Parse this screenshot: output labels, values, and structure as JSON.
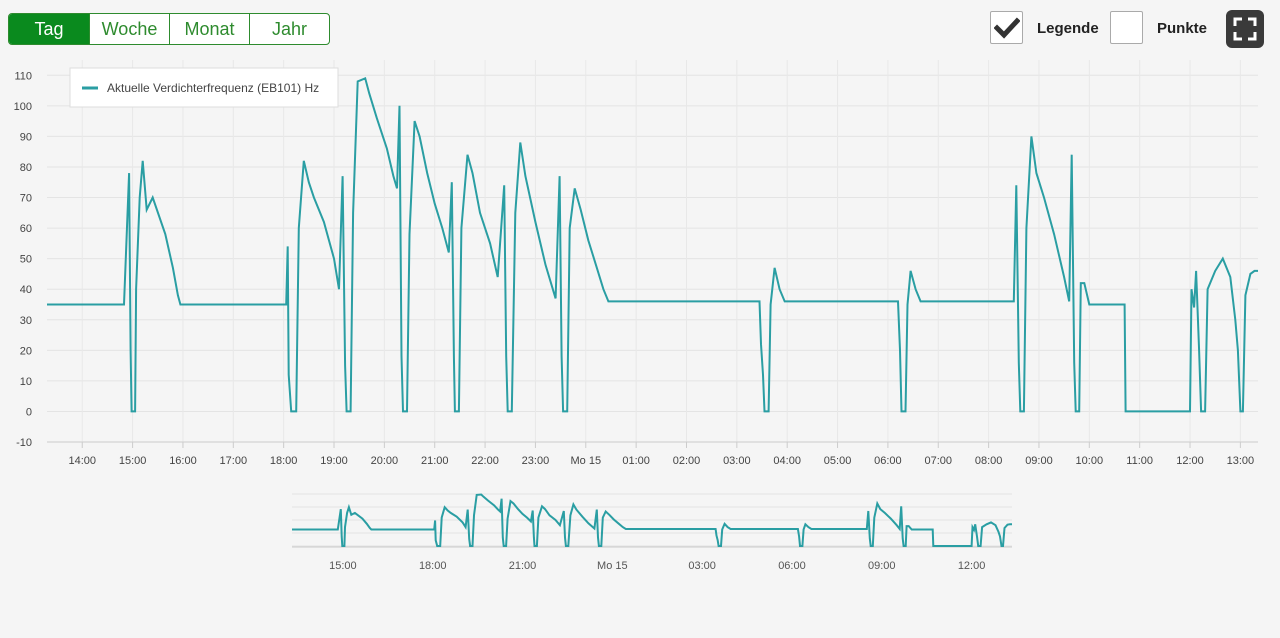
{
  "range_tabs": [
    {
      "label": "Tag",
      "active": true
    },
    {
      "label": "Woche",
      "active": false
    },
    {
      "label": "Monat",
      "active": false
    },
    {
      "label": "Jahr",
      "active": false
    }
  ],
  "toggles": {
    "legend_label": "Legende",
    "legend_checked": true,
    "points_label": "Punkte",
    "points_checked": false
  },
  "icons": {
    "fullscreen": "fullscreen-icon",
    "check": "check-icon"
  },
  "colors": {
    "accent": "#0a8a1e",
    "series": "#2a9ea3"
  },
  "chart_data": {
    "type": "line",
    "title": "",
    "xlabel": "",
    "ylabel": "",
    "ylim": [
      -10,
      115
    ],
    "yticks": [
      -10,
      0,
      10,
      20,
      30,
      40,
      50,
      60,
      70,
      80,
      90,
      100,
      110
    ],
    "xlim": [
      13.3,
      37.35
    ],
    "xticks": [
      {
        "x": 14,
        "label": "14:00"
      },
      {
        "x": 15,
        "label": "15:00"
      },
      {
        "x": 16,
        "label": "16:00"
      },
      {
        "x": 17,
        "label": "17:00"
      },
      {
        "x": 18,
        "label": "18:00"
      },
      {
        "x": 19,
        "label": "19:00"
      },
      {
        "x": 20,
        "label": "20:00"
      },
      {
        "x": 21,
        "label": "21:00"
      },
      {
        "x": 22,
        "label": "22:00"
      },
      {
        "x": 23,
        "label": "23:00"
      },
      {
        "x": 24,
        "label": "Mo 15"
      },
      {
        "x": 25,
        "label": "01:00"
      },
      {
        "x": 26,
        "label": "02:00"
      },
      {
        "x": 27,
        "label": "03:00"
      },
      {
        "x": 28,
        "label": "04:00"
      },
      {
        "x": 29,
        "label": "05:00"
      },
      {
        "x": 30,
        "label": "06:00"
      },
      {
        "x": 31,
        "label": "07:00"
      },
      {
        "x": 32,
        "label": "08:00"
      },
      {
        "x": 33,
        "label": "09:00"
      },
      {
        "x": 34,
        "label": "10:00"
      },
      {
        "x": 35,
        "label": "11:00"
      },
      {
        "x": 36,
        "label": "12:00"
      },
      {
        "x": 37,
        "label": "13:00"
      }
    ],
    "grid": true,
    "legend_position": "top-left",
    "series": [
      {
        "name": "Aktuelle Verdichterfrequenz (EB101) Hz",
        "color": "#2a9ea3",
        "points": [
          [
            13.3,
            35
          ],
          [
            14.83,
            35
          ],
          [
            14.93,
            78
          ],
          [
            14.96,
            20
          ],
          [
            14.98,
            0
          ],
          [
            15.05,
            0
          ],
          [
            15.07,
            40
          ],
          [
            15.14,
            70
          ],
          [
            15.2,
            82
          ],
          [
            15.28,
            66
          ],
          [
            15.4,
            70
          ],
          [
            15.65,
            58
          ],
          [
            15.8,
            47
          ],
          [
            15.9,
            38
          ],
          [
            15.95,
            35
          ],
          [
            18.05,
            35
          ],
          [
            18.08,
            54
          ],
          [
            18.1,
            12
          ],
          [
            18.15,
            0
          ],
          [
            18.25,
            0
          ],
          [
            18.3,
            60
          ],
          [
            18.4,
            82
          ],
          [
            18.5,
            75
          ],
          [
            18.6,
            70
          ],
          [
            18.8,
            62
          ],
          [
            19.0,
            50
          ],
          [
            19.1,
            40
          ],
          [
            19.17,
            77
          ],
          [
            19.22,
            15
          ],
          [
            19.25,
            0
          ],
          [
            19.33,
            0
          ],
          [
            19.38,
            65
          ],
          [
            19.47,
            108
          ],
          [
            19.62,
            109
          ],
          [
            19.7,
            104
          ],
          [
            19.85,
            96
          ],
          [
            20.05,
            86
          ],
          [
            20.18,
            77
          ],
          [
            20.25,
            73
          ],
          [
            20.3,
            100
          ],
          [
            20.34,
            18
          ],
          [
            20.37,
            0
          ],
          [
            20.45,
            0
          ],
          [
            20.5,
            58
          ],
          [
            20.6,
            95
          ],
          [
            20.7,
            90
          ],
          [
            20.85,
            78
          ],
          [
            21.0,
            68
          ],
          [
            21.15,
            60
          ],
          [
            21.28,
            52
          ],
          [
            21.34,
            75
          ],
          [
            21.38,
            18
          ],
          [
            21.4,
            0
          ],
          [
            21.48,
            0
          ],
          [
            21.53,
            60
          ],
          [
            21.65,
            84
          ],
          [
            21.75,
            78
          ],
          [
            21.9,
            65
          ],
          [
            22.1,
            55
          ],
          [
            22.25,
            44
          ],
          [
            22.38,
            74
          ],
          [
            22.42,
            18
          ],
          [
            22.45,
            0
          ],
          [
            22.53,
            0
          ],
          [
            22.6,
            65
          ],
          [
            22.7,
            88
          ],
          [
            22.8,
            77
          ],
          [
            23.0,
            62
          ],
          [
            23.2,
            48
          ],
          [
            23.4,
            37
          ],
          [
            23.48,
            77
          ],
          [
            23.52,
            18
          ],
          [
            23.55,
            0
          ],
          [
            23.63,
            0
          ],
          [
            23.68,
            60
          ],
          [
            23.78,
            73
          ],
          [
            23.9,
            66
          ],
          [
            24.05,
            56
          ],
          [
            24.2,
            48
          ],
          [
            24.35,
            40
          ],
          [
            24.45,
            36
          ],
          [
            27.45,
            36
          ],
          [
            27.48,
            22
          ],
          [
            27.52,
            12
          ],
          [
            27.55,
            0
          ],
          [
            27.63,
            0
          ],
          [
            27.67,
            35
          ],
          [
            27.75,
            47
          ],
          [
            27.85,
            40
          ],
          [
            27.95,
            36
          ],
          [
            30.2,
            36
          ],
          [
            30.24,
            20
          ],
          [
            30.27,
            0
          ],
          [
            30.35,
            0
          ],
          [
            30.39,
            35
          ],
          [
            30.45,
            46
          ],
          [
            30.55,
            40
          ],
          [
            30.65,
            36
          ],
          [
            31.95,
            36
          ],
          [
            32.05,
            36
          ],
          [
            32.5,
            36
          ],
          [
            32.55,
            74
          ],
          [
            32.6,
            16
          ],
          [
            32.63,
            0
          ],
          [
            32.7,
            0
          ],
          [
            32.75,
            60
          ],
          [
            32.85,
            90
          ],
          [
            32.95,
            78
          ],
          [
            33.1,
            70
          ],
          [
            33.3,
            58
          ],
          [
            33.5,
            44
          ],
          [
            33.6,
            36
          ],
          [
            33.65,
            84
          ],
          [
            33.7,
            16
          ],
          [
            33.73,
            0
          ],
          [
            33.8,
            0
          ],
          [
            33.83,
            42
          ],
          [
            33.9,
            42
          ],
          [
            34.0,
            35
          ],
          [
            34.7,
            35
          ],
          [
            34.72,
            0
          ],
          [
            36.0,
            0
          ],
          [
            36.03,
            40
          ],
          [
            36.08,
            34
          ],
          [
            36.12,
            46
          ],
          [
            36.18,
            20
          ],
          [
            36.22,
            0
          ],
          [
            36.3,
            0
          ],
          [
            36.35,
            40
          ],
          [
            36.5,
            46
          ],
          [
            36.65,
            50
          ],
          [
            36.8,
            44
          ],
          [
            36.9,
            30
          ],
          [
            36.95,
            20
          ],
          [
            37.0,
            0
          ],
          [
            37.05,
            0
          ],
          [
            37.1,
            38
          ],
          [
            37.2,
            45
          ],
          [
            37.28,
            46
          ],
          [
            37.35,
            46
          ]
        ]
      }
    ],
    "navigator": {
      "xticks": [
        {
          "x": 15,
          "label": "15:00"
        },
        {
          "x": 18,
          "label": "18:00"
        },
        {
          "x": 21,
          "label": "21:00"
        },
        {
          "x": 24,
          "label": "Mo 15"
        },
        {
          "x": 27,
          "label": "03:00"
        },
        {
          "x": 30,
          "label": "06:00"
        },
        {
          "x": 33,
          "label": "09:00"
        },
        {
          "x": 36,
          "label": "12:00"
        }
      ]
    }
  }
}
